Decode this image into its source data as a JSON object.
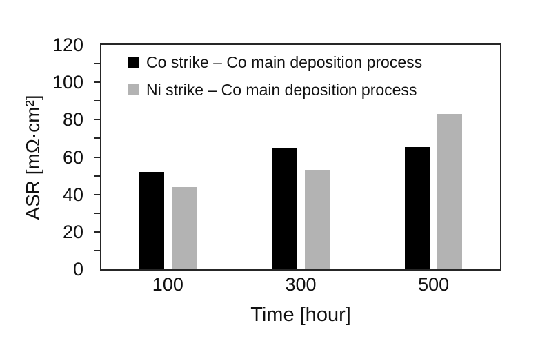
{
  "figure": {
    "background_color": "#ffffff",
    "axis_color": "#262626",
    "text_color": "#111111"
  },
  "chart_data": {
    "type": "bar",
    "title": "",
    "xlabel": "Time [hour]",
    "ylabel": "ASR [mΩ·cm²]",
    "categories": [
      "100",
      "300",
      "500"
    ],
    "series": [
      {
        "name": "Co strike – Co main deposition process",
        "color": "#000000",
        "values": [
          52,
          65,
          65.5
        ]
      },
      {
        "name": "Ni strike – Co main deposition process",
        "color": "#b3b3b3",
        "values": [
          44,
          53,
          83
        ]
      }
    ],
    "ylim": [
      0,
      120
    ],
    "y_major_tick_step": 20,
    "y_minor_tick_step": 10,
    "grid": "off",
    "legend_position": "top-left-inside"
  }
}
